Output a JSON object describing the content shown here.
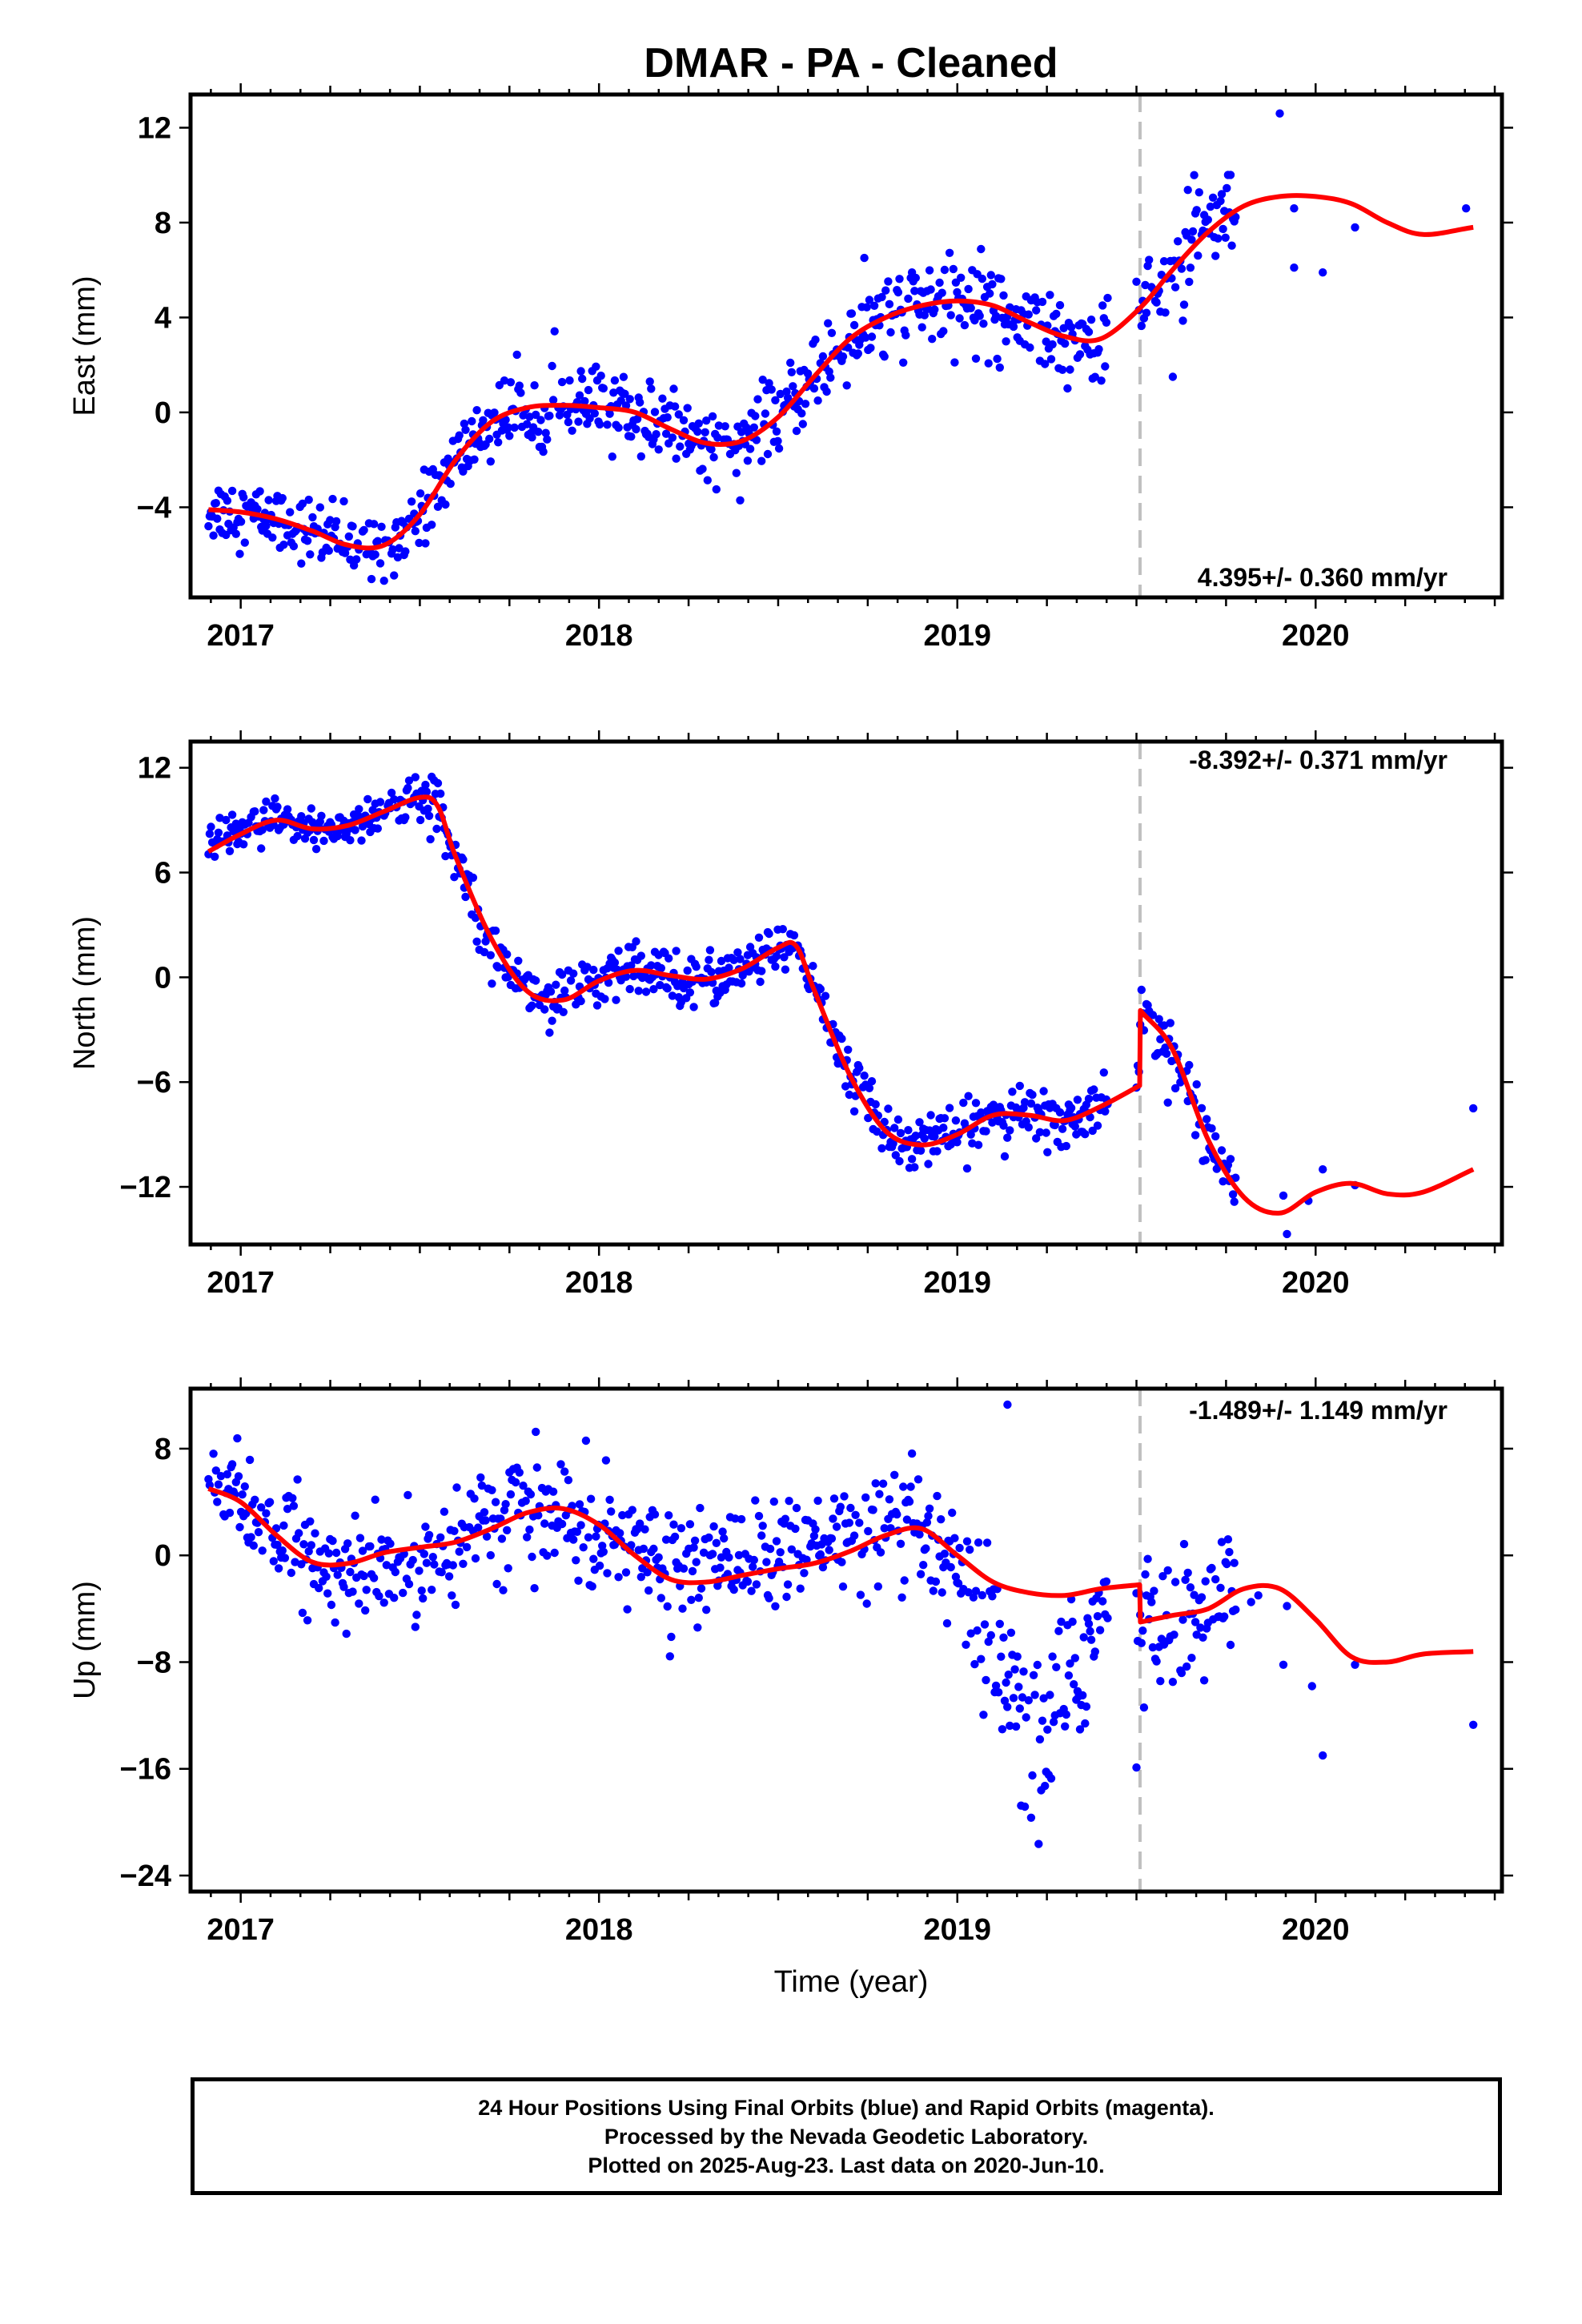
{
  "title": "DMAR  - PA - Cleaned",
  "xlabel": "Time (year)",
  "footer": [
    "24 Hour Positions Using Final Orbits (blue) and Rapid Orbits (magenta).",
    "Processed by the Nevada Geodetic Laboratory.",
    "Plotted on 2025-Aug-23. Last data on 2020-Jun-10."
  ],
  "colors": {
    "points": "#0000ff",
    "model": "#ff0000",
    "break_line": "#c0c0c0",
    "frame": "#000000"
  },
  "chart_data": [
    {
      "type": "scatter",
      "ylabel": "East (mm)",
      "rate_label": "4.395+/- 0.360 mm/yr",
      "xlim": [
        2016.86,
        2020.52
      ],
      "ylim": [
        -7.8,
        13.4
      ],
      "yticks": [
        -4,
        0,
        4,
        8,
        12
      ],
      "xticks": [
        2017,
        2018,
        2019,
        2020
      ],
      "equipment_break": 2019.51,
      "series": [
        {
          "role": "model",
          "x": [
            2016.91,
            2017.0,
            2017.1,
            2017.2,
            2017.3,
            2017.4,
            2017.5,
            2017.6,
            2017.7,
            2017.8,
            2017.9,
            2018.0,
            2018.1,
            2018.2,
            2018.3,
            2018.4,
            2018.5,
            2018.6,
            2018.7,
            2018.8,
            2018.9,
            2019.0,
            2019.1,
            2019.2,
            2019.3,
            2019.4,
            2019.51,
            2019.6,
            2019.7,
            2019.8,
            2019.9,
            2020.0,
            2020.1,
            2020.2,
            2020.3,
            2020.44
          ],
          "y": [
            -4.1,
            -4.2,
            -4.5,
            -5.0,
            -5.6,
            -5.6,
            -4.3,
            -2.0,
            -0.4,
            0.2,
            0.3,
            0.2,
            0.0,
            -0.7,
            -1.3,
            -1.2,
            -0.2,
            1.5,
            3.1,
            4.0,
            4.5,
            4.7,
            4.5,
            3.8,
            3.2,
            3.1,
            4.4,
            6.0,
            7.6,
            8.7,
            9.1,
            9.1,
            8.8,
            8.0,
            7.5,
            7.8
          ]
        },
        {
          "role": "observations",
          "x": [
            2016.91,
            2017.0,
            2017.1,
            2017.2,
            2017.3,
            2017.4,
            2017.5,
            2017.6,
            2017.7,
            2017.8,
            2017.9,
            2018.0,
            2018.1,
            2018.2,
            2018.3,
            2018.4,
            2018.5,
            2018.6,
            2018.7,
            2018.8,
            2018.9,
            2019.0,
            2019.1,
            2019.2,
            2019.3,
            2019.4,
            2019.51,
            2019.6,
            2019.7,
            2019.8,
            2019.9,
            2020.0,
            2020.1,
            2020.2,
            2020.3,
            2020.44
          ],
          "y": [
            -4.1,
            -4.2,
            -4.5,
            -5.0,
            -5.6,
            -5.6,
            -4.3,
            -2.0,
            -0.4,
            0.2,
            0.3,
            0.2,
            0.0,
            -0.7,
            -1.3,
            -1.2,
            -0.2,
            1.5,
            3.1,
            4.0,
            4.5,
            4.7,
            4.5,
            3.8,
            3.2,
            3.1,
            4.4,
            6.0,
            7.6,
            8.7,
            9.1,
            9.1,
            8.8,
            8.0,
            7.5,
            7.8
          ],
          "spread": [
            0.9,
            0.9,
            0.9,
            0.9,
            0.9,
            0.9,
            0.9,
            1.0,
            1.0,
            1.1,
            1.1,
            1.1,
            1.1,
            1.0,
            1.0,
            1.0,
            1.0,
            1.1,
            1.2,
            1.3,
            1.3,
            1.3,
            1.3,
            1.3,
            1.3,
            1.3,
            1.4,
            1.5,
            1.5,
            1.3,
            1.3,
            1.3,
            1.3,
            1.3,
            1.3,
            1.3
          ],
          "x_end_dense": 2019.78,
          "sparse_points": [
            [
              2019.9,
              12.6
            ],
            [
              2019.94,
              6.1
            ],
            [
              2020.02,
              5.9
            ],
            [
              2020.11,
              7.8
            ],
            [
              2019.94,
              8.6
            ],
            [
              2020.42,
              8.6
            ]
          ]
        }
      ]
    },
    {
      "type": "scatter",
      "ylabel": "North (mm)",
      "rate_label": "-8.392+/- 0.371 mm/yr",
      "xlim": [
        2016.86,
        2020.52
      ],
      "ylim": [
        -15.3,
        13.5
      ],
      "yticks": [
        -12,
        -6,
        0,
        6,
        12
      ],
      "xticks": [
        2017,
        2018,
        2019,
        2020
      ],
      "equipment_break": 2019.51,
      "series": [
        {
          "role": "model",
          "x": [
            2016.91,
            2017.0,
            2017.1,
            2017.2,
            2017.3,
            2017.4,
            2017.5,
            2017.55,
            2017.6,
            2017.7,
            2017.8,
            2017.9,
            2018.0,
            2018.1,
            2018.2,
            2018.3,
            2018.4,
            2018.5,
            2018.55,
            2018.6,
            2018.7,
            2018.8,
            2018.9,
            2019.0,
            2019.1,
            2019.2,
            2019.3,
            2019.4,
            2019.509,
            2019.511,
            2019.6,
            2019.7,
            2019.8,
            2019.9,
            2020.0,
            2020.1,
            2020.2,
            2020.3,
            2020.44
          ],
          "y": [
            7.2,
            8.2,
            9.0,
            8.5,
            8.7,
            9.5,
            10.3,
            9.8,
            6.9,
            2.2,
            -0.8,
            -1.3,
            -0.2,
            0.4,
            0.1,
            -0.1,
            0.5,
            1.7,
            1.8,
            -0.7,
            -5.6,
            -8.8,
            -9.6,
            -9.0,
            -7.9,
            -7.9,
            -8.2,
            -7.4,
            -6.2,
            -1.9,
            -4.1,
            -9.3,
            -12.6,
            -13.5,
            -12.3,
            -11.8,
            -12.4,
            -12.3,
            -11.0
          ]
        },
        {
          "role": "observations",
          "x": [
            2016.91,
            2017.0,
            2017.1,
            2017.2,
            2017.3,
            2017.4,
            2017.5,
            2017.55,
            2017.6,
            2017.7,
            2017.8,
            2017.9,
            2018.0,
            2018.1,
            2018.2,
            2018.3,
            2018.4,
            2018.5,
            2018.55,
            2018.6,
            2018.7,
            2018.8,
            2018.9,
            2019.0,
            2019.1,
            2019.2,
            2019.3,
            2019.4,
            2019.509,
            2019.511,
            2019.6,
            2019.7,
            2019.8,
            2019.9,
            2020.0,
            2020.1,
            2020.2,
            2020.3,
            2020.44
          ],
          "y": [
            7.2,
            8.2,
            9.0,
            8.5,
            8.7,
            9.5,
            10.3,
            9.8,
            6.9,
            2.2,
            -0.8,
            -1.3,
            -0.2,
            0.4,
            0.1,
            -0.1,
            0.5,
            1.7,
            1.8,
            -0.7,
            -5.6,
            -8.8,
            -9.6,
            -9.0,
            -7.9,
            -7.9,
            -8.2,
            -7.4,
            -6.2,
            -1.9,
            -4.1,
            -9.3,
            -12.6,
            -13.5,
            -12.3,
            -11.8,
            -12.4,
            -12.3,
            -11.0
          ],
          "spread": [
            0.9,
            0.9,
            0.9,
            0.9,
            0.9,
            0.9,
            0.9,
            1.0,
            1.0,
            1.0,
            1.0,
            1.0,
            1.0,
            1.0,
            1.0,
            1.0,
            1.0,
            1.0,
            1.0,
            1.0,
            1.0,
            1.0,
            1.0,
            1.0,
            1.0,
            1.0,
            1.0,
            1.0,
            1.0,
            1.2,
            1.2,
            1.2,
            1.2,
            1.2,
            1.2,
            1.2,
            1.2,
            1.2,
            1.2
          ],
          "x_end_dense": 2019.78,
          "sparse_points": [
            [
              2019.91,
              -12.5
            ],
            [
              2019.92,
              -14.7
            ],
            [
              2019.98,
              -12.8
            ],
            [
              2020.02,
              -11.0
            ],
            [
              2020.11,
              -11.9
            ],
            [
              2020.44,
              -7.5
            ]
          ]
        }
      ]
    },
    {
      "type": "scatter",
      "ylabel": "Up (mm)",
      "rate_label": "-1.489+/- 1.149 mm/yr",
      "xlim": [
        2016.86,
        2020.52
      ],
      "ylim": [
        -25.2,
        12.5
      ],
      "yticks": [
        -24,
        -16,
        -8,
        0,
        8
      ],
      "xticks": [
        2017,
        2018,
        2019,
        2020
      ],
      "equipment_break": 2019.51,
      "series": [
        {
          "role": "model",
          "x": [
            2016.91,
            2017.0,
            2017.1,
            2017.2,
            2017.3,
            2017.4,
            2017.5,
            2017.6,
            2017.7,
            2017.8,
            2017.9,
            2018.0,
            2018.1,
            2018.2,
            2018.3,
            2018.4,
            2018.5,
            2018.6,
            2018.7,
            2018.8,
            2018.9,
            2019.0,
            2019.1,
            2019.2,
            2019.3,
            2019.4,
            2019.509,
            2019.511,
            2019.6,
            2019.7,
            2019.8,
            2019.9,
            2020.0,
            2020.1,
            2020.2,
            2020.3,
            2020.44
          ],
          "y": [
            5.0,
            4.0,
            1.5,
            -0.5,
            -0.6,
            0.2,
            0.6,
            1.0,
            2.0,
            3.2,
            3.5,
            2.3,
            0.0,
            -1.8,
            -2.0,
            -1.5,
            -1.0,
            -0.6,
            0.3,
            1.5,
            2.0,
            0.0,
            -2.0,
            -2.8,
            -3.0,
            -2.5,
            -2.2,
            -5.0,
            -4.5,
            -4.0,
            -2.5,
            -2.5,
            -4.8,
            -7.6,
            -8.0,
            -7.4,
            -7.2
          ]
        },
        {
          "role": "observations",
          "x": [
            2016.91,
            2017.0,
            2017.1,
            2017.2,
            2017.3,
            2017.4,
            2017.5,
            2017.6,
            2017.7,
            2017.8,
            2017.9,
            2018.0,
            2018.1,
            2018.2,
            2018.3,
            2018.4,
            2018.5,
            2018.6,
            2018.7,
            2018.8,
            2018.9,
            2019.0,
            2019.1,
            2019.2,
            2019.3,
            2019.4,
            2019.509,
            2019.511,
            2019.6,
            2019.7,
            2019.8,
            2019.9,
            2020.0,
            2020.1,
            2020.2,
            2020.3,
            2020.44
          ],
          "y": [
            6.5,
            4.0,
            1.5,
            -0.5,
            -1.5,
            -1.0,
            -0.5,
            1.5,
            2.8,
            3.2,
            3.0,
            2.0,
            0.5,
            -1.0,
            -0.5,
            0.5,
            0.0,
            0.5,
            1.5,
            2.0,
            1.5,
            -2.0,
            -7.5,
            -15.0,
            -11.0,
            -4.0,
            -6.0,
            -6.0,
            -5.0,
            -4.0,
            -3.0,
            -3.0,
            -4.8,
            -7.6,
            -8.0,
            -7.4,
            -7.2
          ],
          "spread": [
            2.5,
            2.5,
            2.6,
            2.6,
            2.6,
            2.6,
            2.7,
            2.8,
            2.8,
            2.8,
            2.8,
            2.8,
            2.8,
            2.8,
            2.8,
            2.8,
            2.8,
            2.8,
            2.8,
            2.8,
            2.8,
            3.0,
            4.0,
            5.0,
            4.5,
            3.5,
            4.0,
            4.0,
            4.0,
            3.5,
            3.5,
            3.5,
            3.5,
            3.5,
            3.5,
            3.5,
            3.5
          ],
          "x_end_dense": 2019.78,
          "sparse_points": [
            [
              2019.14,
              11.3
            ],
            [
              2019.91,
              -8.2
            ],
            [
              2019.92,
              -3.8
            ],
            [
              2019.99,
              -9.8
            ],
            [
              2020.02,
              -15.0
            ],
            [
              2020.11,
              -8.2
            ],
            [
              2020.44,
              -12.7
            ],
            [
              2019.5,
              -15.9
            ],
            [
              2019.82,
              -3.5
            ],
            [
              2019.84,
              -3.0
            ]
          ]
        }
      ]
    }
  ]
}
